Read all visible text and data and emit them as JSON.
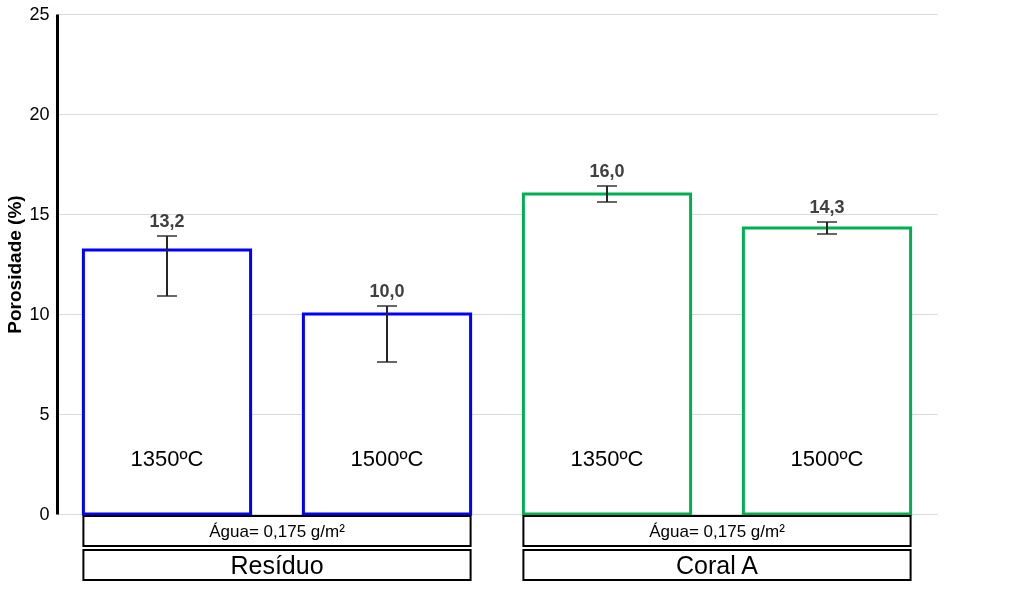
{
  "chart_data": {
    "type": "bar",
    "ylabel": "Porosidade (%)",
    "categories": [
      "1350ºC",
      "1500ºC",
      "1350ºC",
      "1500ºC"
    ],
    "values": [
      13.2,
      10.0,
      16.0,
      14.3
    ],
    "colors": [
      "#0000ff",
      "#0000ff",
      "#00b050",
      "#00b050"
    ],
    "errors": [
      [
        10.9,
        13.9
      ],
      [
        7.6,
        10.4
      ],
      0.4,
      0.3
    ],
    "value_labels": [
      "13,2",
      "10,0",
      "16,0",
      "14,3"
    ],
    "annotations": [
      "Água= 0,175 g/m²",
      "Água= 0,175 g/m²",
      "Resíduo",
      "Coral A"
    ],
    "ylim": [
      0,
      25
    ],
    "yticks": [
      0,
      5,
      10,
      15,
      20,
      25
    ],
    "grid": "y"
  }
}
